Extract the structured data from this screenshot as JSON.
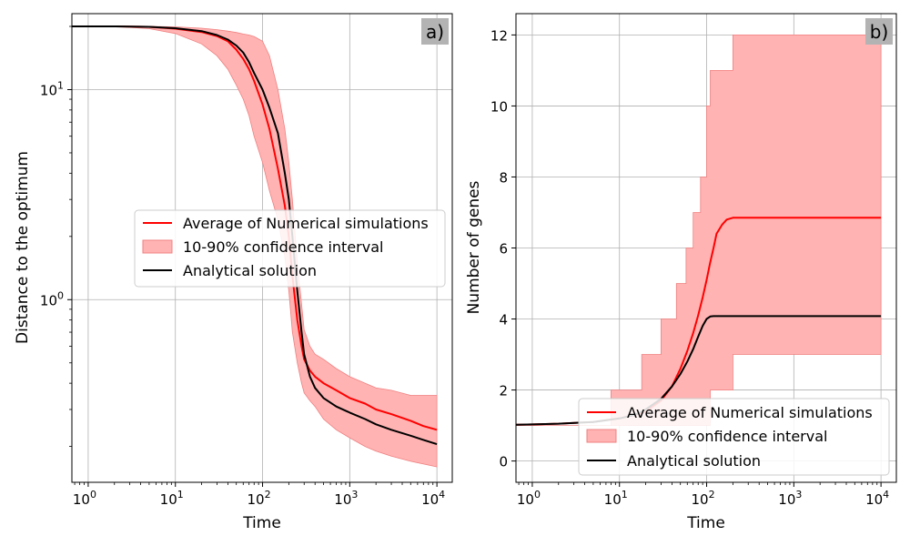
{
  "chart_data": [
    {
      "type": "line",
      "panel_label": "a)",
      "xlabel": "Time",
      "ylabel": "Distance to the optimum",
      "xscale": "log",
      "yscale": "log",
      "xlim": [
        0.65,
        15000
      ],
      "ylim": [
        0.135,
        23
      ],
      "xticks": [
        {
          "value": 1,
          "base": "10",
          "exp": "0"
        },
        {
          "value": 10,
          "base": "10",
          "exp": "1"
        },
        {
          "value": 100,
          "base": "10",
          "exp": "2"
        },
        {
          "value": 1000,
          "base": "10",
          "exp": "3"
        },
        {
          "value": 10000,
          "base": "10",
          "exp": "4"
        }
      ],
      "yticks": [
        {
          "value": 1,
          "base": "10",
          "exp": "0"
        },
        {
          "value": 10,
          "base": "10",
          "exp": "1"
        }
      ],
      "grid": true,
      "legend_position": "center-right",
      "legend": [
        {
          "label": "Average of Numerical simulations",
          "kind": "line",
          "color": "#ff0000"
        },
        {
          "label": "10-90% confidence interval",
          "kind": "patch",
          "color": "#ffb3b3"
        },
        {
          "label": "Analytical solution",
          "kind": "line",
          "color": "#000000"
        }
      ],
      "series": [
        {
          "name": "Average of Numerical simulations",
          "color": "#ff0000",
          "x": [
            0.65,
            1,
            2,
            5,
            10,
            20,
            30,
            40,
            50,
            60,
            70,
            80,
            100,
            120,
            150,
            180,
            200,
            220,
            250,
            280,
            300,
            350,
            400,
            500,
            700,
            1000,
            1500,
            2000,
            3000,
            5000,
            7000,
            10000
          ],
          "y": [
            20,
            20,
            20,
            19.9,
            19.5,
            18.8,
            18,
            17,
            15.5,
            14,
            12.5,
            11,
            8.5,
            6.5,
            4.2,
            2.8,
            2.0,
            1.3,
            0.8,
            0.6,
            0.52,
            0.46,
            0.43,
            0.4,
            0.37,
            0.34,
            0.32,
            0.3,
            0.285,
            0.265,
            0.25,
            0.24
          ]
        },
        {
          "name": "Analytical solution",
          "color": "#000000",
          "x": [
            0.65,
            1,
            2,
            5,
            10,
            20,
            30,
            40,
            50,
            60,
            70,
            80,
            100,
            120,
            150,
            180,
            200,
            220,
            250,
            280,
            300,
            350,
            400,
            500,
            700,
            1000,
            1500,
            2000,
            3000,
            5000,
            7000,
            10000
          ],
          "y": [
            20,
            20,
            20,
            19.9,
            19.6,
            19.0,
            18.2,
            17.3,
            16.2,
            15,
            13.5,
            12,
            10,
            8.2,
            6.2,
            4.0,
            3.0,
            2.0,
            1.1,
            0.7,
            0.55,
            0.43,
            0.38,
            0.34,
            0.31,
            0.29,
            0.27,
            0.255,
            0.24,
            0.225,
            0.215,
            0.205
          ]
        }
      ],
      "bands": [
        {
          "name": "10-90% confidence interval",
          "color": "#ffb3b3",
          "x": [
            0.65,
            1,
            2,
            5,
            10,
            20,
            30,
            40,
            50,
            60,
            70,
            80,
            100,
            120,
            150,
            180,
            200,
            220,
            250,
            280,
            300,
            350,
            400,
            500,
            700,
            1000,
            1500,
            2000,
            3000,
            5000,
            7000,
            10000
          ],
          "upper": [
            20,
            20,
            20,
            20,
            19.9,
            19.6,
            19.3,
            19.0,
            18.7,
            18.4,
            18.2,
            17.9,
            17,
            14.5,
            10,
            6.5,
            4.5,
            3.0,
            1.5,
            0.95,
            0.72,
            0.6,
            0.55,
            0.52,
            0.47,
            0.43,
            0.4,
            0.38,
            0.37,
            0.35,
            0.35,
            0.35
          ],
          "lower": [
            20,
            20,
            20,
            19.5,
            18.5,
            16.5,
            14.5,
            12.5,
            10.5,
            9,
            7.5,
            6.0,
            4.5,
            3.3,
            2.4,
            1.6,
            1.1,
            0.7,
            0.5,
            0.4,
            0.36,
            0.33,
            0.31,
            0.27,
            0.24,
            0.22,
            0.2,
            0.19,
            0.18,
            0.17,
            0.165,
            0.16
          ]
        }
      ]
    },
    {
      "type": "line",
      "panel_label": "b)",
      "xlabel": "Time",
      "ylabel": "Number of genes",
      "xscale": "log",
      "yscale": "linear",
      "xlim": [
        0.65,
        15000
      ],
      "ylim": [
        -0.6,
        12.6
      ],
      "xticks": [
        {
          "value": 1,
          "base": "10",
          "exp": "0"
        },
        {
          "value": 10,
          "base": "10",
          "exp": "1"
        },
        {
          "value": 100,
          "base": "10",
          "exp": "2"
        },
        {
          "value": 1000,
          "base": "10",
          "exp": "3"
        },
        {
          "value": 10000,
          "base": "10",
          "exp": "4"
        }
      ],
      "yticks": [
        {
          "value": 0,
          "label": "0"
        },
        {
          "value": 2,
          "label": "2"
        },
        {
          "value": 4,
          "label": "4"
        },
        {
          "value": 6,
          "label": "6"
        },
        {
          "value": 8,
          "label": "8"
        },
        {
          "value": 10,
          "label": "10"
        },
        {
          "value": 12,
          "label": "12"
        }
      ],
      "grid": true,
      "legend_position": "lower-right",
      "legend": [
        {
          "label": "Average of Numerical simulations",
          "kind": "line",
          "color": "#ff0000"
        },
        {
          "label": "10-90% confidence interval",
          "kind": "patch",
          "color": "#ffb3b3"
        },
        {
          "label": "Analytical solution",
          "kind": "line",
          "color": "#000000"
        }
      ],
      "series": [
        {
          "name": "Average of Numerical simulations",
          "color": "#ff0000",
          "x": [
            0.65,
            1,
            2,
            5,
            10,
            15,
            20,
            30,
            40,
            50,
            60,
            70,
            80,
            90,
            100,
            110,
            120,
            130,
            150,
            170,
            200,
            300,
            500,
            1000,
            10000
          ],
          "y": [
            1.02,
            1.03,
            1.05,
            1.1,
            1.2,
            1.3,
            1.4,
            1.7,
            2.1,
            2.6,
            3.1,
            3.6,
            4.1,
            4.6,
            5.1,
            5.6,
            6.0,
            6.4,
            6.65,
            6.8,
            6.85,
            6.85,
            6.85,
            6.85,
            6.85
          ]
        },
        {
          "name": "Analytical solution",
          "color": "#000000",
          "x": [
            0.65,
            1,
            2,
            5,
            10,
            15,
            20,
            30,
            40,
            50,
            60,
            70,
            80,
            90,
            100,
            110,
            120,
            150,
            200,
            500,
            1000,
            10000
          ],
          "y": [
            1.02,
            1.03,
            1.05,
            1.1,
            1.2,
            1.3,
            1.45,
            1.75,
            2.1,
            2.45,
            2.8,
            3.15,
            3.5,
            3.8,
            4.0,
            4.07,
            4.08,
            4.08,
            4.08,
            4.08,
            4.08,
            4.08
          ]
        }
      ],
      "bands": [
        {
          "name": "10-90% confidence interval",
          "color": "#ffb3b3",
          "x": [
            0.65,
            8,
            8,
            15,
            15,
            18,
            18,
            30,
            30,
            45,
            45,
            58,
            58,
            70,
            70,
            85,
            85,
            100,
            100,
            110,
            110,
            150,
            150,
            200,
            200,
            10000
          ],
          "upper": [
            1,
            1,
            2,
            2,
            2,
            2,
            3,
            3,
            4,
            4,
            5,
            5,
            6,
            6,
            7,
            7,
            8,
            8,
            10,
            10,
            11,
            11,
            11,
            11,
            12,
            12
          ],
          "lower": [
            1,
            1,
            1,
            1,
            1,
            1,
            1,
            1,
            1,
            1,
            1,
            1,
            1,
            1,
            1,
            1,
            1,
            1,
            1,
            1,
            2,
            2,
            2,
            2,
            3,
            3
          ]
        }
      ]
    }
  ]
}
